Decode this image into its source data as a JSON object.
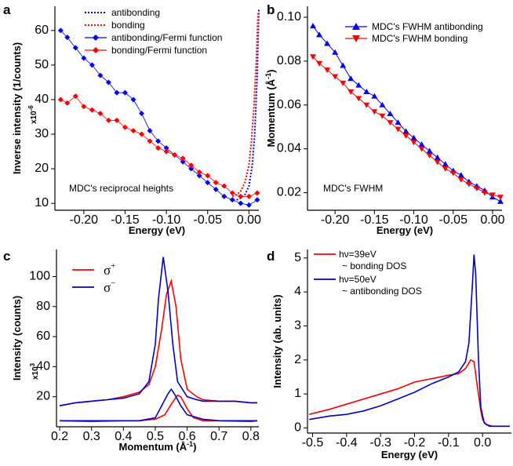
{
  "chart_data": [
    {
      "panel": "a",
      "type": "line",
      "xlabel": "Energy (eV)",
      "ylabel": "Inverse intensity (1/counts)",
      "multiplier": "x10",
      "multiplier_exp": "-6",
      "xlim": [
        -0.235,
        0.012
      ],
      "ylim": [
        8,
        67
      ],
      "xticks": [
        -0.2,
        -0.15,
        -0.1,
        -0.05,
        0.0
      ],
      "xtick_labels": [
        "-0.20",
        "-0.15",
        "-0.10",
        "-0.05",
        "0.00"
      ],
      "yticks": [
        10,
        20,
        30,
        40,
        50,
        60
      ],
      "yticklabels": [
        "10",
        "20",
        "30",
        "40",
        "50",
        "60"
      ],
      "annotation": "MDC's reciprocal heights",
      "legend_position": "top-right",
      "series": [
        {
          "name": "antibonding",
          "color": "#0000ff",
          "style": "dotted",
          "x": [
            -0.015,
            -0.01,
            -0.005,
            0.0,
            0.004,
            0.007,
            0.01,
            0.012
          ],
          "y": [
            11,
            11.5,
            12.5,
            15,
            21,
            30,
            47,
            66
          ]
        },
        {
          "name": "bonding",
          "color": "#ff0000",
          "style": "dotted",
          "x": [
            -0.02,
            -0.015,
            -0.01,
            -0.005,
            0.0,
            0.003,
            0.006,
            0.009,
            0.011
          ],
          "y": [
            12,
            12.5,
            13.5,
            16,
            21,
            28,
            38,
            52,
            65
          ]
        },
        {
          "name": "antibonding/Fermi function",
          "color": "#0000ff",
          "style": "markers",
          "x": [
            -0.228,
            -0.22,
            -0.21,
            -0.2,
            -0.19,
            -0.18,
            -0.17,
            -0.16,
            -0.15,
            -0.14,
            -0.13,
            -0.12,
            -0.11,
            -0.1,
            -0.09,
            -0.08,
            -0.07,
            -0.06,
            -0.05,
            -0.04,
            -0.03,
            -0.02,
            -0.01,
            0.0,
            0.01
          ],
          "y": [
            60,
            58,
            55,
            52,
            50,
            47,
            45,
            42,
            42,
            40,
            36,
            31,
            28,
            26,
            24,
            22,
            20,
            18,
            16,
            14,
            12,
            11,
            10,
            9.5,
            11
          ]
        },
        {
          "name": "bonding/Fermi function",
          "color": "#ff0000",
          "style": "markers",
          "x": [
            -0.228,
            -0.22,
            -0.21,
            -0.2,
            -0.19,
            -0.18,
            -0.17,
            -0.16,
            -0.15,
            -0.14,
            -0.13,
            -0.12,
            -0.11,
            -0.1,
            -0.09,
            -0.08,
            -0.07,
            -0.06,
            -0.05,
            -0.04,
            -0.03,
            -0.02,
            -0.01,
            0.0,
            0.01
          ],
          "y": [
            40,
            39,
            41,
            38,
            37,
            36,
            34,
            34,
            32,
            31,
            30,
            28,
            26,
            25,
            24,
            23,
            21,
            19,
            18,
            16,
            15,
            13,
            12,
            12,
            13
          ]
        }
      ]
    },
    {
      "panel": "b",
      "type": "line",
      "xlabel": "Energy (eV)",
      "ylabel": "Momentum (Å",
      "ylabel_sup": "-1",
      "ylabel_tail": ")",
      "xlim": [
        -0.235,
        0.012
      ],
      "ylim": [
        0.012,
        0.105
      ],
      "xticks": [
        -0.2,
        -0.15,
        -0.1,
        -0.05,
        0.0
      ],
      "xtick_labels": [
        "-0.20",
        "-0.15",
        "-0.10",
        "-0.05",
        "0.00"
      ],
      "yticks": [
        0.02,
        0.04,
        0.06,
        0.08,
        0.1
      ],
      "yticklabels": [
        "0.02",
        "0.04",
        "0.06",
        "0.08",
        "0.10"
      ],
      "annotation": "MDC's FWHM",
      "legend_position": "top-right",
      "series": [
        {
          "name": "MDC's FWHM antibonding",
          "color": "#0000ff",
          "marker": "triangle-up",
          "x": [
            -0.228,
            -0.22,
            -0.21,
            -0.2,
            -0.19,
            -0.18,
            -0.17,
            -0.16,
            -0.15,
            -0.14,
            -0.13,
            -0.12,
            -0.11,
            -0.1,
            -0.09,
            -0.08,
            -0.07,
            -0.06,
            -0.05,
            -0.04,
            -0.03,
            -0.02,
            -0.01,
            0.0,
            0.01
          ],
          "y": [
            0.096,
            0.092,
            0.088,
            0.084,
            0.078,
            0.072,
            0.069,
            0.066,
            0.064,
            0.06,
            0.056,
            0.052,
            0.048,
            0.045,
            0.042,
            0.039,
            0.036,
            0.033,
            0.03,
            0.028,
            0.025,
            0.023,
            0.021,
            0.018,
            0.016
          ]
        },
        {
          "name": "MDC's FWHM bonding",
          "color": "#ff0000",
          "marker": "triangle-down",
          "x": [
            -0.228,
            -0.22,
            -0.21,
            -0.2,
            -0.19,
            -0.18,
            -0.17,
            -0.16,
            -0.15,
            -0.14,
            -0.13,
            -0.12,
            -0.11,
            -0.1,
            -0.09,
            -0.08,
            -0.07,
            -0.06,
            -0.05,
            -0.04,
            -0.03,
            -0.02,
            -0.01,
            0.0,
            0.01
          ],
          "y": [
            0.082,
            0.079,
            0.076,
            0.073,
            0.07,
            0.066,
            0.063,
            0.06,
            0.057,
            0.055,
            0.052,
            0.049,
            0.046,
            0.043,
            0.04,
            0.037,
            0.034,
            0.031,
            0.029,
            0.026,
            0.024,
            0.022,
            0.02,
            0.019,
            0.018
          ]
        }
      ]
    },
    {
      "panel": "c",
      "type": "line",
      "xlabel": "Momentum (Å",
      "xlabel_sup": "-1",
      "xlabel_tail": ")",
      "ylabel": "Intensity (counts)",
      "multiplier": "x10",
      "multiplier_exp": "3",
      "xlim": [
        0.19,
        0.825
      ],
      "ylim": [
        0,
        118
      ],
      "xticks": [
        0.2,
        0.3,
        0.4,
        0.5,
        0.6,
        0.7,
        0.8
      ],
      "xtick_labels": [
        "0.2",
        "0.3",
        "0.4",
        "0.5",
        "0.6",
        "0.7",
        "0.8"
      ],
      "yticks": [
        20,
        40,
        60,
        80,
        100
      ],
      "yticklabels": [
        "20",
        "40",
        "60",
        "80",
        "100"
      ],
      "legend_position": "top-left",
      "series": [
        {
          "name": "σ",
          "sup": "+",
          "color": "#ff0000",
          "x": [
            0.2,
            0.25,
            0.3,
            0.35,
            0.4,
            0.45,
            0.48,
            0.5,
            0.52,
            0.535,
            0.55,
            0.565,
            0.58,
            0.6,
            0.63,
            0.65,
            0.7,
            0.75,
            0.8,
            0.82
          ],
          "y": [
            14,
            16,
            17,
            18,
            20,
            23,
            28,
            40,
            65,
            88,
            97,
            80,
            45,
            25,
            20,
            18,
            17,
            17,
            16,
            16
          ]
        },
        {
          "name": "σ",
          "sup": "−",
          "color": "#0000cc",
          "x": [
            0.2,
            0.25,
            0.3,
            0.35,
            0.4,
            0.45,
            0.48,
            0.5,
            0.51,
            0.525,
            0.54,
            0.555,
            0.57,
            0.6,
            0.63,
            0.65,
            0.7,
            0.75,
            0.8,
            0.82
          ],
          "y": [
            14,
            16,
            17,
            18,
            19,
            22,
            30,
            55,
            85,
            113,
            90,
            55,
            30,
            20,
            18,
            17,
            17,
            17,
            16,
            16
          ]
        },
        {
          "name": "",
          "color": "#ff0000",
          "x": [
            0.2,
            0.3,
            0.4,
            0.45,
            0.5,
            0.53,
            0.55,
            0.57,
            0.58,
            0.6,
            0.62,
            0.65,
            0.7,
            0.8,
            0.82
          ],
          "y": [
            4,
            3.5,
            4,
            4,
            5,
            8,
            15,
            21,
            20,
            12,
            6,
            4,
            4,
            3.5,
            4
          ]
        },
        {
          "name": "",
          "color": "#0000cc",
          "x": [
            0.2,
            0.3,
            0.4,
            0.45,
            0.5,
            0.52,
            0.54,
            0.55,
            0.56,
            0.58,
            0.6,
            0.65,
            0.7,
            0.8,
            0.82
          ],
          "y": [
            4,
            4,
            4,
            4,
            6,
            14,
            22,
            25,
            22,
            14,
            8,
            5,
            4,
            4,
            4
          ]
        }
      ]
    },
    {
      "panel": "d",
      "type": "line",
      "xlabel": "Energy (eV)",
      "ylabel": "Intensity (ab. units)",
      "xlim": [
        -0.515,
        0.085
      ],
      "ylim": [
        -0.15,
        5.25
      ],
      "xticks": [
        -0.5,
        -0.4,
        -0.3,
        -0.2,
        -0.1,
        0.0
      ],
      "xtick_labels": [
        "-0.5",
        "-0.4",
        "-0.3",
        "-0.2",
        "-0.1",
        "0.0"
      ],
      "yticks": [
        0,
        1,
        2,
        3,
        4,
        5
      ],
      "yticklabels": [
        "0",
        "1",
        "2",
        "3",
        "4",
        "5"
      ],
      "legend_position": "top-left",
      "series": [
        {
          "name": "hν=39eV",
          "note": "~ bonding DOS",
          "color": "#ff0000",
          "x": [
            -0.51,
            -0.45,
            -0.4,
            -0.35,
            -0.3,
            -0.25,
            -0.2,
            -0.15,
            -0.1,
            -0.07,
            -0.05,
            -0.035,
            -0.025,
            -0.015,
            -0.005,
            0.0,
            0.01,
            0.03,
            0.06,
            0.08
          ],
          "y": [
            0.4,
            0.55,
            0.7,
            0.85,
            1.0,
            1.15,
            1.35,
            1.45,
            1.55,
            1.6,
            1.75,
            2.0,
            1.95,
            1.2,
            0.5,
            0.25,
            0.1,
            0.05,
            0.05,
            0.05
          ]
        },
        {
          "name": "hν=50eV",
          "note": "~ antibonding DOS",
          "color": "#0000cc",
          "x": [
            -0.51,
            -0.45,
            -0.4,
            -0.35,
            -0.3,
            -0.25,
            -0.2,
            -0.15,
            -0.1,
            -0.07,
            -0.05,
            -0.04,
            -0.03,
            -0.025,
            -0.02,
            -0.012,
            -0.005,
            0.005,
            0.02,
            0.04,
            0.06,
            0.08
          ],
          "y": [
            0.25,
            0.35,
            0.4,
            0.5,
            0.65,
            0.85,
            1.05,
            1.3,
            1.5,
            1.65,
            1.95,
            2.5,
            4.2,
            5.1,
            4.5,
            2.0,
            0.6,
            0.15,
            0.05,
            0.05,
            0.05,
            0.05
          ]
        }
      ]
    }
  ],
  "panel_labels": [
    "a",
    "b",
    "c",
    "d"
  ]
}
